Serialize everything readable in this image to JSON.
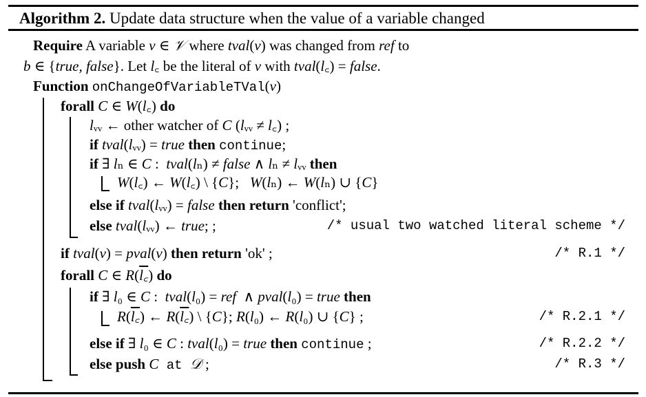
{
  "title": {
    "label": "Algorithm 2.",
    "text": " Update data structure when the value of a variable changed"
  },
  "lines": [
    {
      "segs": [
        [
          "b",
          "Require"
        ],
        [
          "r",
          " A variable "
        ],
        [
          "i",
          "v"
        ],
        [
          "r",
          " ∈ "
        ],
        [
          "i",
          "𝒱"
        ],
        [
          "r",
          " where "
        ],
        [
          "i",
          "tval"
        ],
        [
          "r",
          "("
        ],
        [
          "i",
          "v"
        ],
        [
          "r",
          ") was changed from "
        ],
        [
          "i",
          "ref"
        ],
        [
          "r",
          " to"
        ]
      ]
    },
    {
      "segs": [
        [
          "i",
          "b"
        ],
        [
          "r",
          " ∈ {"
        ],
        [
          "i",
          "true, false"
        ],
        [
          "r",
          "}. Let "
        ],
        [
          "i",
          "l"
        ],
        [
          "r",
          "꜀ be the literal of "
        ],
        [
          "i",
          "v"
        ],
        [
          "r",
          " with "
        ],
        [
          "i",
          "tval"
        ],
        [
          "r",
          "("
        ],
        [
          "i",
          "l"
        ],
        [
          "r",
          "꜀) = "
        ],
        [
          "i",
          "false"
        ],
        [
          "r",
          "."
        ]
      ]
    },
    {
      "segs": [
        [
          "b",
          "Function "
        ],
        [
          "t",
          "onChangeOfVariableTVal"
        ],
        [
          "r",
          "("
        ],
        [
          "i",
          "v"
        ],
        [
          "r",
          ")"
        ]
      ]
    },
    {
      "segs": [
        [
          "b",
          "forall "
        ],
        [
          "i",
          "C"
        ],
        [
          "r",
          " ∈ "
        ],
        [
          "i",
          "W"
        ],
        [
          "r",
          "("
        ],
        [
          "i",
          "l"
        ],
        [
          "r",
          "꜀) "
        ],
        [
          "b",
          "do"
        ]
      ]
    },
    {
      "segs": [
        [
          "i",
          "l"
        ],
        [
          "r",
          "ᵥᵥ ← other watcher of "
        ],
        [
          "i",
          "C"
        ],
        [
          "r",
          " ("
        ],
        [
          "i",
          "l"
        ],
        [
          "r",
          "ᵥᵥ ≠ "
        ],
        [
          "i",
          "l"
        ],
        [
          "r",
          "꜀) ;"
        ]
      ]
    },
    {
      "segs": [
        [
          "b",
          "if "
        ],
        [
          "i",
          "tval"
        ],
        [
          "r",
          "("
        ],
        [
          "i",
          "l"
        ],
        [
          "r",
          "ᵥᵥ) = "
        ],
        [
          "i",
          "true"
        ],
        [
          "b",
          " then "
        ],
        [
          "t",
          "continue"
        ],
        [
          "r",
          ";"
        ]
      ]
    },
    {
      "segs": [
        [
          "b",
          "if "
        ],
        [
          "r",
          "∃ "
        ],
        [
          "i",
          "l"
        ],
        [
          "r",
          "ₙ ∈ "
        ],
        [
          "i",
          "C"
        ],
        [
          "r",
          " :  "
        ],
        [
          "i",
          "tval"
        ],
        [
          "r",
          "("
        ],
        [
          "i",
          "l"
        ],
        [
          "r",
          "ₙ) ≠ "
        ],
        [
          "i",
          "false"
        ],
        [
          "r",
          " ∧ "
        ],
        [
          "i",
          "l"
        ],
        [
          "r",
          "ₙ ≠ "
        ],
        [
          "i",
          "l"
        ],
        [
          "r",
          "ᵥᵥ "
        ],
        [
          "b",
          "then"
        ]
      ]
    },
    {
      "segs": [
        [
          "i",
          "W"
        ],
        [
          "r",
          "("
        ],
        [
          "i",
          "l"
        ],
        [
          "r",
          "꜀) ← "
        ],
        [
          "i",
          "W"
        ],
        [
          "r",
          "("
        ],
        [
          "i",
          "l"
        ],
        [
          "r",
          "꜀) \\ {"
        ],
        [
          "i",
          "C"
        ],
        [
          "r",
          "};   "
        ],
        [
          "i",
          "W"
        ],
        [
          "r",
          "("
        ],
        [
          "i",
          "l"
        ],
        [
          "r",
          "ₙ) ← "
        ],
        [
          "i",
          "W"
        ],
        [
          "r",
          "("
        ],
        [
          "i",
          "l"
        ],
        [
          "r",
          "ₙ) ∪ {"
        ],
        [
          "i",
          "C"
        ],
        [
          "r",
          "}"
        ]
      ]
    },
    {
      "segs": [
        [
          "b",
          "else if "
        ],
        [
          "i",
          "tval"
        ],
        [
          "r",
          "("
        ],
        [
          "i",
          "l"
        ],
        [
          "r",
          "ᵥᵥ) = "
        ],
        [
          "i",
          "false"
        ],
        [
          "b",
          " then return "
        ],
        [
          "r",
          "'conflict';"
        ]
      ]
    },
    {
      "segs": [
        [
          "b",
          "else "
        ],
        [
          "i",
          "tval"
        ],
        [
          "r",
          "("
        ],
        [
          "i",
          "l"
        ],
        [
          "r",
          "ᵥᵥ) ← "
        ],
        [
          "i",
          "true"
        ],
        [
          "r",
          "; ;"
        ]
      ],
      "comment": "/* usual two watched literal scheme */"
    },
    {
      "segs": [
        [
          "b",
          "if "
        ],
        [
          "i",
          "tval"
        ],
        [
          "r",
          "("
        ],
        [
          "i",
          "v"
        ],
        [
          "r",
          ") = "
        ],
        [
          "i",
          "pval"
        ],
        [
          "r",
          "("
        ],
        [
          "i",
          "v"
        ],
        [
          "r",
          ")"
        ],
        [
          "b",
          " then return "
        ],
        [
          "r",
          "'ok' ;"
        ]
      ],
      "comment": "/* R.1 */"
    },
    {
      "segs": [
        [
          "b",
          "forall "
        ],
        [
          "i",
          "C"
        ],
        [
          "r",
          " ∈ "
        ],
        [
          "i",
          "R"
        ],
        [
          "r",
          "("
        ],
        [
          "o",
          "l꜀"
        ],
        [
          "r",
          ") "
        ],
        [
          "b",
          "do"
        ]
      ]
    },
    {
      "segs": [
        [
          "b",
          "if "
        ],
        [
          "r",
          "∃ "
        ],
        [
          "i",
          "l"
        ],
        [
          "r",
          "₀ ∈ "
        ],
        [
          "i",
          "C"
        ],
        [
          "r",
          " :  "
        ],
        [
          "i",
          "tval"
        ],
        [
          "r",
          "("
        ],
        [
          "i",
          "l"
        ],
        [
          "r",
          "₀) = "
        ],
        [
          "i",
          "ref"
        ],
        [
          "r",
          "  ∧ "
        ],
        [
          "i",
          "pval"
        ],
        [
          "r",
          "("
        ],
        [
          "i",
          "l"
        ],
        [
          "r",
          "₀) = "
        ],
        [
          "i",
          "true"
        ],
        [
          "b",
          " then"
        ]
      ]
    },
    {
      "segs": [
        [
          "i",
          "R"
        ],
        [
          "r",
          "("
        ],
        [
          "o",
          "l꜀"
        ],
        [
          "r",
          ") ← "
        ],
        [
          "i",
          "R"
        ],
        [
          "r",
          "("
        ],
        [
          "o",
          "l꜀"
        ],
        [
          "r",
          ") \\ {"
        ],
        [
          "i",
          "C"
        ],
        [
          "r",
          "}; "
        ],
        [
          "i",
          "R"
        ],
        [
          "r",
          "("
        ],
        [
          "i",
          "l"
        ],
        [
          "r",
          "₀) ← "
        ],
        [
          "i",
          "R"
        ],
        [
          "r",
          "("
        ],
        [
          "i",
          "l"
        ],
        [
          "r",
          "₀) ∪ {"
        ],
        [
          "i",
          "C"
        ],
        [
          "r",
          "} ;"
        ]
      ],
      "comment": "/* R.2.1 */"
    },
    {
      "segs": [
        [
          "b",
          "else if "
        ],
        [
          "r",
          "∃ "
        ],
        [
          "i",
          "l"
        ],
        [
          "r",
          "₀ ∈ "
        ],
        [
          "i",
          "C"
        ],
        [
          "r",
          " : "
        ],
        [
          "i",
          "tval"
        ],
        [
          "r",
          "("
        ],
        [
          "i",
          "l"
        ],
        [
          "r",
          "₀) = "
        ],
        [
          "i",
          "true"
        ],
        [
          "b",
          " then "
        ],
        [
          "t",
          "continue"
        ],
        [
          "r",
          " ;"
        ]
      ],
      "comment": "/* R.2.2 */"
    },
    {
      "segs": [
        [
          "b",
          "else push "
        ],
        [
          "i",
          "C"
        ],
        [
          "t",
          " at "
        ],
        [
          "i",
          "𝒟"
        ],
        [
          "r",
          " ;"
        ]
      ],
      "comment": "/* R.3 */"
    }
  ]
}
